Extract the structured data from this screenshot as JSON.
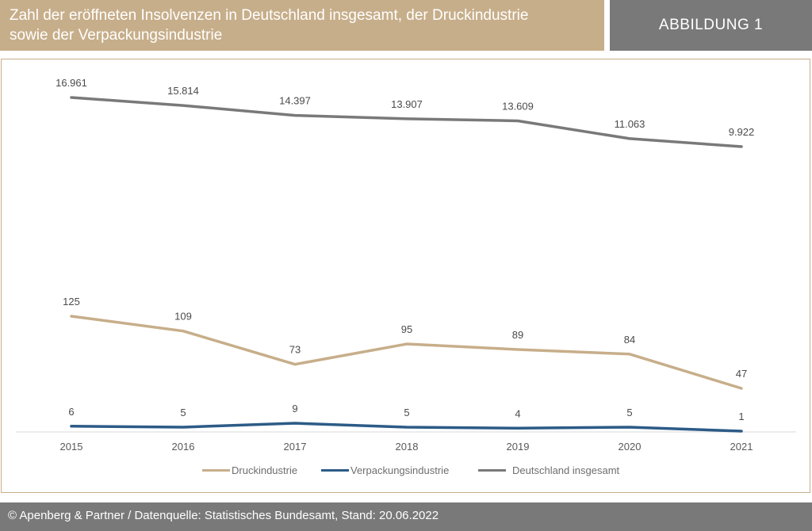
{
  "header": {
    "title_line1": "Zahl der eröffneten Insolvenzen in Deutschland insgesamt, der Druckindustrie",
    "title_line2": "sowie der Verpackungsindustrie",
    "badge": "ABBILDUNG 1"
  },
  "footer": {
    "text": "© Apenberg & Partner / Datenquelle: Statistisches Bundesamt, Stand: 20.06.2022"
  },
  "colors": {
    "accent": "#c7ae8a",
    "druck": "#c7ae8a",
    "verpackung": "#2c5b87",
    "deutschland": "#797979",
    "gray_bar": "#797979"
  },
  "chart_data": {
    "type": "line",
    "x": [
      "2015",
      "2016",
      "2017",
      "2018",
      "2019",
      "2020",
      "2021"
    ],
    "series": [
      {
        "name": "Druckindustrie",
        "values": [
          125,
          109,
          73,
          95,
          89,
          84,
          47
        ],
        "labels": [
          "125",
          "109",
          "73",
          "95",
          "89",
          "84",
          "47"
        ],
        "color": "#c7ae8a"
      },
      {
        "name": "Verpackungsindustrie",
        "values": [
          6,
          5,
          9,
          5,
          4,
          5,
          1
        ],
        "labels": [
          "6",
          "5",
          "9",
          "5",
          "4",
          "5",
          "1"
        ],
        "color": "#2c5b87"
      },
      {
        "name": "Deutschland insgesamt",
        "values": [
          16961,
          15814,
          14397,
          13907,
          13609,
          11063,
          9922
        ],
        "labels": [
          "16.961",
          "15.814",
          "14.397",
          "13.907",
          "13.609",
          "11.063",
          "9.922"
        ],
        "color": "#797979"
      }
    ],
    "legend_position": "bottom",
    "grid": false,
    "scale": "non-uniform (separate vertical ranges per series)"
  }
}
